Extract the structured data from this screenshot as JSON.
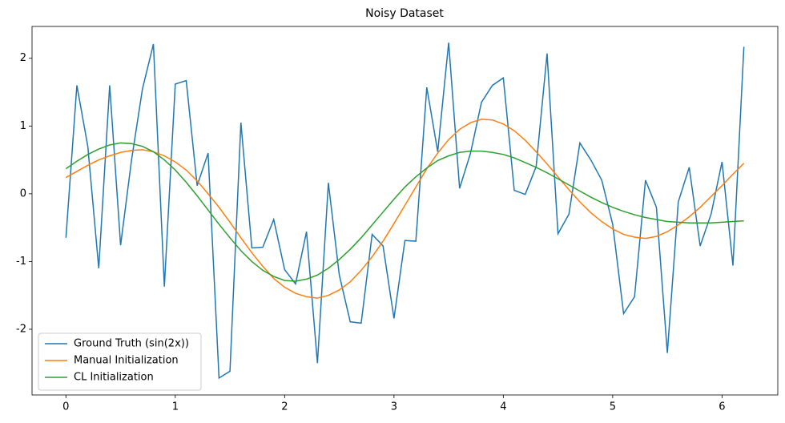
{
  "chart_data": {
    "type": "line",
    "title": "Noisy Dataset",
    "x": [
      0,
      0.1,
      0.2,
      0.3,
      0.4,
      0.5,
      0.6,
      0.7,
      0.8,
      0.9,
      1.0,
      1.1,
      1.2,
      1.3,
      1.4,
      1.5,
      1.6,
      1.7,
      1.8,
      1.9,
      2.0,
      2.1,
      2.2,
      2.3,
      2.4,
      2.5,
      2.6,
      2.7,
      2.8,
      2.9,
      3.0,
      3.1,
      3.2,
      3.3,
      3.4,
      3.5,
      3.6,
      3.7,
      3.8,
      3.9,
      4.0,
      4.1,
      4.2,
      4.3,
      4.4,
      4.5,
      4.6,
      4.7,
      4.8,
      4.9,
      5.0,
      5.1,
      5.2,
      5.3,
      5.4,
      5.5,
      5.6,
      5.7,
      5.8,
      5.9,
      6.0,
      6.1,
      6.2
    ],
    "series": [
      {
        "name": "Ground Truth (sin(2x))",
        "color": "#1f77b4",
        "values": [
          -0.65,
          1.6,
          0.7,
          -1.1,
          1.6,
          -0.76,
          0.5,
          1.55,
          2.21,
          -1.37,
          1.62,
          1.67,
          0.12,
          0.6,
          -2.72,
          -2.62,
          1.05,
          -0.8,
          -0.79,
          -0.38,
          -1.12,
          -1.33,
          -0.56,
          -2.5,
          0.16,
          -1.2,
          -1.89,
          -1.91,
          -0.6,
          -0.77,
          -1.84,
          -0.69,
          -0.7,
          1.57,
          0.62,
          2.23,
          0.08,
          0.6,
          1.35,
          1.6,
          1.71,
          0.05,
          -0.01,
          0.4,
          2.07,
          -0.59,
          -0.3,
          0.75,
          0.5,
          0.2,
          -0.45,
          -1.77,
          -1.52,
          0.2,
          -0.2,
          -2.35,
          -0.12,
          0.39,
          -0.77,
          -0.3,
          0.47,
          -1.06,
          2.17
        ]
      },
      {
        "name": "Manual Initialization",
        "color": "#ff7f0e",
        "values": [
          0.24,
          0.33,
          0.42,
          0.5,
          0.56,
          0.61,
          0.64,
          0.65,
          0.62,
          0.56,
          0.47,
          0.35,
          0.19,
          0.0,
          -0.2,
          -0.42,
          -0.65,
          -0.87,
          -1.07,
          -1.25,
          -1.38,
          -1.47,
          -1.52,
          -1.54,
          -1.5,
          -1.42,
          -1.3,
          -1.13,
          -0.93,
          -0.7,
          -0.44,
          -0.17,
          0.1,
          0.37,
          0.6,
          0.8,
          0.95,
          1.05,
          1.1,
          1.09,
          1.03,
          0.93,
          0.79,
          0.62,
          0.44,
          0.25,
          0.06,
          -0.12,
          -0.28,
          -0.41,
          -0.52,
          -0.6,
          -0.64,
          -0.66,
          -0.63,
          -0.56,
          -0.46,
          -0.34,
          -0.2,
          -0.04,
          0.12,
          0.29,
          0.45
        ]
      },
      {
        "name": "CL Initialization",
        "color": "#2ca02c",
        "values": [
          0.37,
          0.48,
          0.58,
          0.66,
          0.72,
          0.75,
          0.74,
          0.7,
          0.62,
          0.5,
          0.35,
          0.17,
          -0.03,
          -0.24,
          -0.45,
          -0.65,
          -0.84,
          -1.0,
          -1.13,
          -1.22,
          -1.28,
          -1.29,
          -1.26,
          -1.2,
          -1.1,
          -0.97,
          -0.82,
          -0.65,
          -0.46,
          -0.27,
          -0.08,
          0.1,
          0.25,
          0.38,
          0.49,
          0.56,
          0.61,
          0.63,
          0.63,
          0.61,
          0.58,
          0.53,
          0.46,
          0.39,
          0.31,
          0.22,
          0.13,
          0.04,
          -0.05,
          -0.13,
          -0.2,
          -0.26,
          -0.31,
          -0.35,
          -0.38,
          -0.41,
          -0.42,
          -0.43,
          -0.43,
          -0.43,
          -0.42,
          -0.41,
          -0.4
        ]
      }
    ],
    "xlim": [
      -0.31,
      6.51
    ],
    "ylim": [
      -2.97,
      2.47
    ],
    "xticks": [
      0,
      1,
      2,
      3,
      4,
      5,
      6
    ],
    "yticks": [
      -2,
      -1,
      0,
      1,
      2
    ],
    "legend": "lower left",
    "grid": false
  }
}
